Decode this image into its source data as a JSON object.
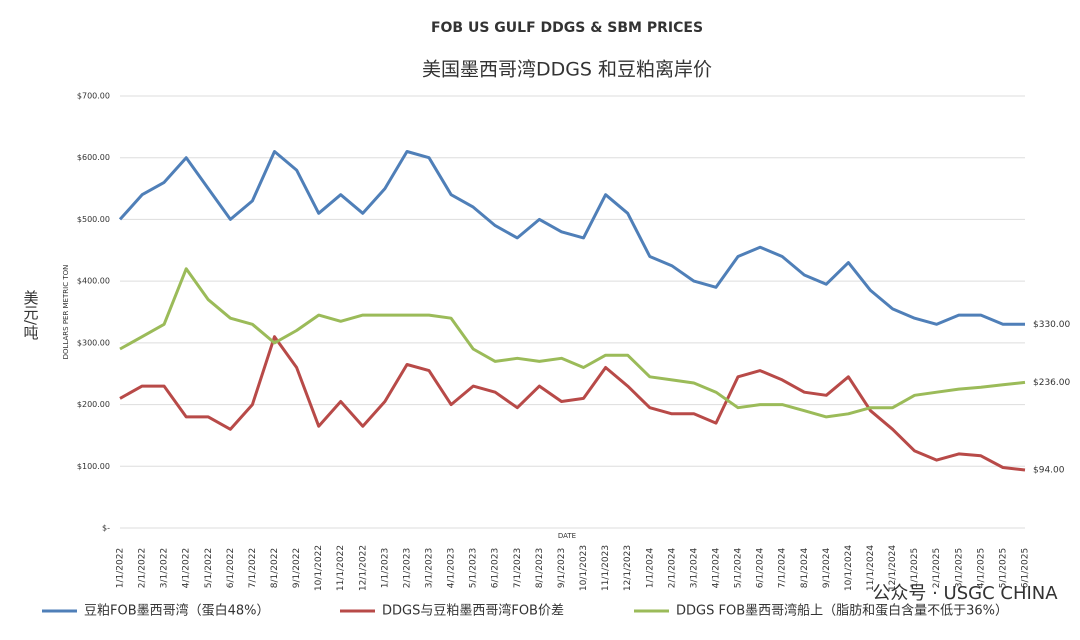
{
  "chart_data": {
    "type": "line",
    "title": "FOB US GULF DDGS & SBM PRICES",
    "subtitle": "美国墨西哥湾DDGS 和豆粕离岸价",
    "y_label": "DOLLARS PER METRIC TON",
    "y_unit": "美元/吨",
    "x_label": "DATE",
    "watermark": "公众号 · USGC CHINA",
    "grid": true,
    "legend": "bottom",
    "categories": [
      "1/1/2022",
      "2/1/2022",
      "3/1/2022",
      "4/1/2022",
      "5/1/2022",
      "6/1/2022",
      "7/1/2022",
      "8/1/2022",
      "9/1/2022",
      "10/1/2022",
      "11/1/2022",
      "12/1/2022",
      "1/1/2023",
      "2/1/2023",
      "3/1/2023",
      "4/1/2023",
      "5/1/2023",
      "6/1/2023",
      "7/1/2023",
      "8/1/2023",
      "9/1/2023",
      "10/1/2023",
      "11/1/2023",
      "12/1/2023",
      "1/1/2024",
      "2/1/2024",
      "3/1/2024",
      "4/1/2024",
      "5/1/2024",
      "6/1/2024",
      "7/1/2024",
      "8/1/2024",
      "9/1/2024",
      "10/1/2024",
      "11/1/2024",
      "12/1/2024",
      "1/1/2025",
      "2/1/2025",
      "3/1/2025",
      "4/1/2025",
      "5/1/2025",
      "6/1/2025"
    ],
    "ylim": [
      0,
      700
    ],
    "yticks": [
      {
        "value": 0,
        "label": "$-"
      },
      {
        "value": 100,
        "label": "$100.00"
      },
      {
        "value": 200,
        "label": "$200.00"
      },
      {
        "value": 300,
        "label": "$300.00"
      },
      {
        "value": 400,
        "label": "$400.00"
      },
      {
        "value": 500,
        "label": "$500.00"
      },
      {
        "value": 600,
        "label": "$600.00"
      },
      {
        "value": 700,
        "label": "$700.00"
      }
    ],
    "series": [
      {
        "name": "豆粕FOB墨西哥湾（蛋白48%）",
        "color": "#4f7fb8",
        "values": [
          500,
          540,
          560,
          600,
          550,
          500,
          530,
          610,
          580,
          510,
          540,
          510,
          550,
          610,
          600,
          540,
          520,
          490,
          470,
          500,
          480,
          470,
          540,
          510,
          440,
          425,
          400,
          390,
          440,
          455,
          440,
          410,
          395,
          430,
          385,
          355,
          340,
          330,
          345,
          345,
          330,
          330
        ],
        "end_label": {
          "value": 330,
          "label": "$330.00"
        }
      },
      {
        "name": "DDGS与豆粕墨西哥湾FOB价差",
        "color": "#b84a48",
        "values": [
          210,
          230,
          230,
          180,
          180,
          160,
          200,
          310,
          260,
          165,
          205,
          165,
          205,
          265,
          255,
          200,
          230,
          220,
          195,
          230,
          205,
          210,
          260,
          230,
          195,
          185,
          185,
          170,
          245,
          255,
          240,
          220,
          215,
          245,
          190,
          160,
          125,
          110,
          120,
          117,
          98,
          94
        ],
        "end_label": {
          "value": 94,
          "label": "$94.00"
        }
      },
      {
        "name": "DDGS FOB墨西哥湾船上（脂肪和蛋白含量不低于36%）",
        "color": "#9bbb59",
        "values": [
          290,
          310,
          330,
          420,
          370,
          340,
          330,
          300,
          320,
          345,
          335,
          345,
          345,
          345,
          345,
          340,
          290,
          270,
          275,
          270,
          275,
          260,
          280,
          280,
          245,
          240,
          235,
          220,
          195,
          200,
          200,
          190,
          180,
          185,
          195,
          195,
          215,
          220,
          225,
          228,
          232,
          236
        ],
        "end_label": {
          "value": 236,
          "label": "$236.00"
        }
      }
    ]
  }
}
